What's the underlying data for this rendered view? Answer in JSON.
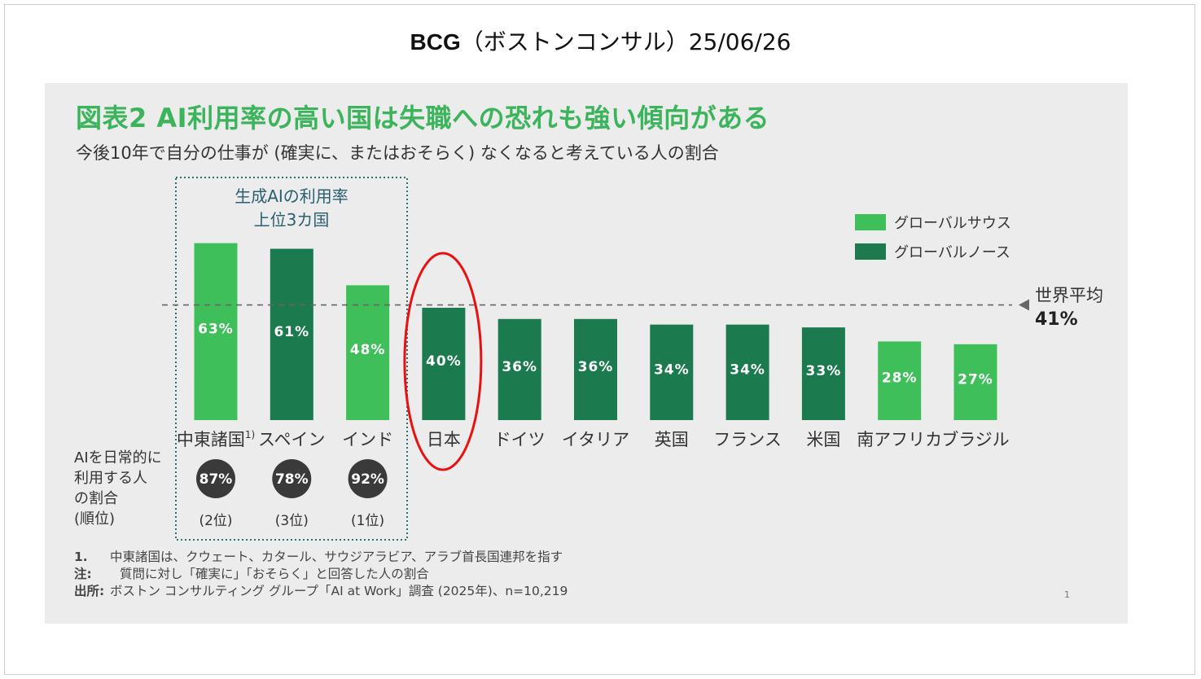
{
  "header": {
    "brand": "BCG",
    "rest": "（ボストンコンサル）25/06/26"
  },
  "slide": {
    "title": "図表2  AI利用率の高い国は失職への恐れも強い傾向がある",
    "subtitle": "今後10年で自分の仕事が (確実に、またはおそらく) なくなると考えている人の割合",
    "top3_box_label": [
      "生成AIの利用率",
      "上位3カ国"
    ],
    "legend": [
      {
        "label": "グローバルサウス",
        "color": "#3fbf5a"
      },
      {
        "label": "グローバルノース",
        "color": "#1b7a4e"
      }
    ],
    "world_average": {
      "label": "世界平均",
      "value_text": "41%",
      "value": 41
    },
    "ai_usage_label": [
      "AIを日常的に",
      "利用する人",
      "の割合",
      "(順位)"
    ],
    "ai_usage": [
      {
        "value": "87%",
        "rank": "(2位)"
      },
      {
        "value": "78%",
        "rank": "(3位)"
      },
      {
        "value": "92%",
        "rank": "(1位)"
      }
    ],
    "highlight": "日本",
    "footnotes": [
      {
        "key": "1.",
        "text": "中東諸国は、クウェート、カタール、サウジアラビア、アラブ首長国連邦を指す"
      },
      {
        "key": "注:",
        "text": "質問に対し「確実に」「おそらく」と回答した人の割合"
      },
      {
        "key": "出所:",
        "text": "ボストン コンサルティング グループ「AI at Work」調査 (2025年)、n=10,219"
      }
    ],
    "page_number": "1"
  },
  "chart_data": {
    "type": "bar",
    "categories": [
      "中東諸国",
      "スペイン",
      "インド",
      "日本",
      "ドイツ",
      "イタリア",
      "英国",
      "フランス",
      "米国",
      "南アフリカ",
      "ブラジル"
    ],
    "category_superscripts": [
      "1)",
      "",
      "",
      "",
      "",
      "",
      "",
      "",
      "",
      "",
      ""
    ],
    "values": [
      63,
      61,
      48,
      40,
      36,
      36,
      34,
      34,
      33,
      28,
      27
    ],
    "value_labels": [
      "63%",
      "61%",
      "48%",
      "40%",
      "36%",
      "36%",
      "34%",
      "34%",
      "33%",
      "28%",
      "27%"
    ],
    "groups": [
      "グローバルサウス",
      "グローバルノース",
      "グローバルサウス",
      "グローバルノース",
      "グローバルノース",
      "グローバルノース",
      "グローバルノース",
      "グローバルノース",
      "グローバルノース",
      "グローバルサウス",
      "グローバルサウス"
    ],
    "reference_line": 41,
    "unit": "%",
    "ylim": [
      0,
      70
    ],
    "grid": false,
    "legend_position": "top-right"
  },
  "colors": {
    "global_south": "#3fbf5a",
    "global_north": "#1b7a4e",
    "title": "#3cb45c",
    "highlight_circle": "#e81010",
    "box_border": "#2f6f6f",
    "badge": "#3a3a3a"
  }
}
